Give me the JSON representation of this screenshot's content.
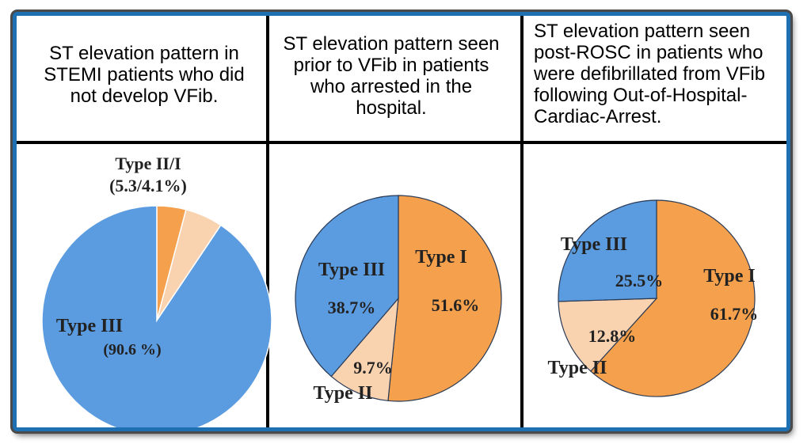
{
  "panels": [
    {
      "caption": "ST elevation pattern in STEMI patients who did not develop VFib."
    },
    {
      "caption": "ST elevation pattern seen prior to VFib in patients who arrested in the hospital."
    },
    {
      "caption": "ST elevation pattern seen post-ROSC in patients who were defibrillated from VFib following Out-of-Hospital-Cardiac-Arrest."
    }
  ],
  "colors": {
    "type1": "#f4a04c",
    "type2": "#f9d2b0",
    "type3": "#5b9be0",
    "frame": "#1f6fb3"
  },
  "chart_data": [
    {
      "type": "pie",
      "slices": [
        {
          "label": "Type I",
          "value": 4.1,
          "color": "#f4a04c"
        },
        {
          "label": "Type II",
          "value": 5.3,
          "color": "#f9d2b0"
        },
        {
          "label": "Type III",
          "value": 90.6,
          "color": "#5b9be0"
        }
      ],
      "annotations": {
        "small": "Type II/I",
        "small_value": "(5.3/4.1%)",
        "big": "Type III",
        "big_value": "(90.6 %)"
      }
    },
    {
      "type": "pie",
      "slices": [
        {
          "label": "Type I",
          "value": 51.6,
          "display": "51.6%",
          "color": "#f4a04c"
        },
        {
          "label": "Type II",
          "value": 9.7,
          "display": "9.7%",
          "color": "#f9d2b0"
        },
        {
          "label": "Type III",
          "value": 38.7,
          "display": "38.7%",
          "color": "#5b9be0"
        }
      ]
    },
    {
      "type": "pie",
      "slices": [
        {
          "label": "Type I",
          "value": 61.7,
          "display": "61.7%",
          "color": "#f4a04c"
        },
        {
          "label": "Type II",
          "value": 12.8,
          "display": "12.8%",
          "color": "#f9d2b0"
        },
        {
          "label": "Type III",
          "value": 25.5,
          "display": "25.5%",
          "color": "#5b9be0"
        }
      ]
    }
  ]
}
